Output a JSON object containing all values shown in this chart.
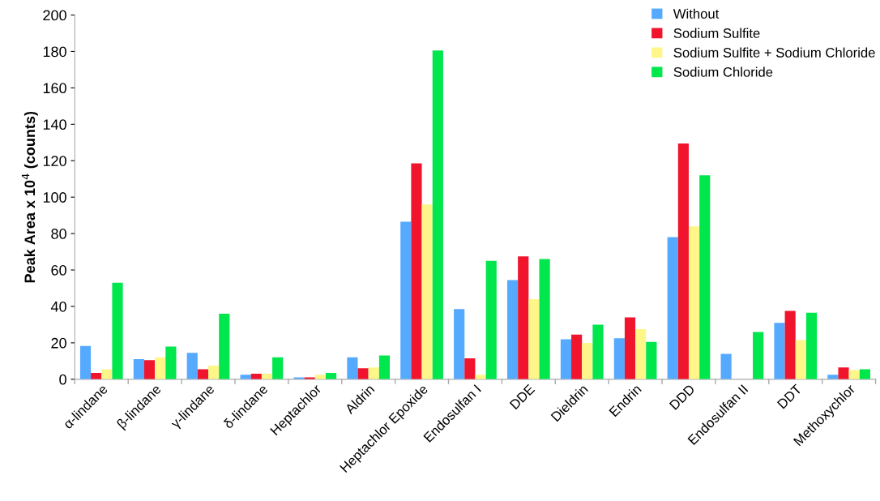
{
  "chart_data": {
    "type": "bar",
    "ylabel": "Peak Area x 10$^{4}$ (counts)",
    "categories": [
      "α-lindane",
      "β-lindane",
      "γ-lindane",
      "δ-lindane",
      "Heptachlor",
      "Aldrin",
      "Heptachlor Epoxide",
      "Endosulfan I",
      "DDE",
      "Dieldrin",
      "Endrin",
      "DDD",
      "Endosulfan II",
      "DDT",
      "Methoxychlor"
    ],
    "series": [
      {
        "name": "Without",
        "color": "#55aaff",
        "values": [
          18.3,
          11,
          14.5,
          2.5,
          1,
          12,
          86.5,
          38.5,
          54.5,
          22,
          22.5,
          78,
          14,
          31,
          2.5
        ]
      },
      {
        "name": "Sodium Sulfite",
        "color": "#f0142d",
        "values": [
          3.5,
          10.5,
          5.5,
          3,
          1,
          6,
          118.5,
          11.5,
          67.5,
          24.5,
          34,
          129.5,
          0,
          37.5,
          6.5
        ]
      },
      {
        "name": "Sodium Sulfite + Sodium Chloride",
        "color": "#fff68a",
        "values": [
          5.5,
          12,
          7.5,
          3,
          2.5,
          6.5,
          96,
          2.5,
          44,
          20,
          27.5,
          84,
          0,
          21.5,
          5
        ]
      },
      {
        "name": "Sodium Chloride",
        "color": "#00e64d",
        "values": [
          53,
          18,
          36,
          12,
          3.5,
          13,
          180.5,
          65,
          66,
          30,
          20.5,
          112,
          26,
          36.5,
          5.5
        ]
      }
    ],
    "ylim": [
      0,
      200
    ],
    "yticks": [
      0,
      20,
      40,
      60,
      80,
      100,
      120,
      140,
      160,
      180,
      200
    ],
    "grid": false,
    "legend": "top right"
  }
}
